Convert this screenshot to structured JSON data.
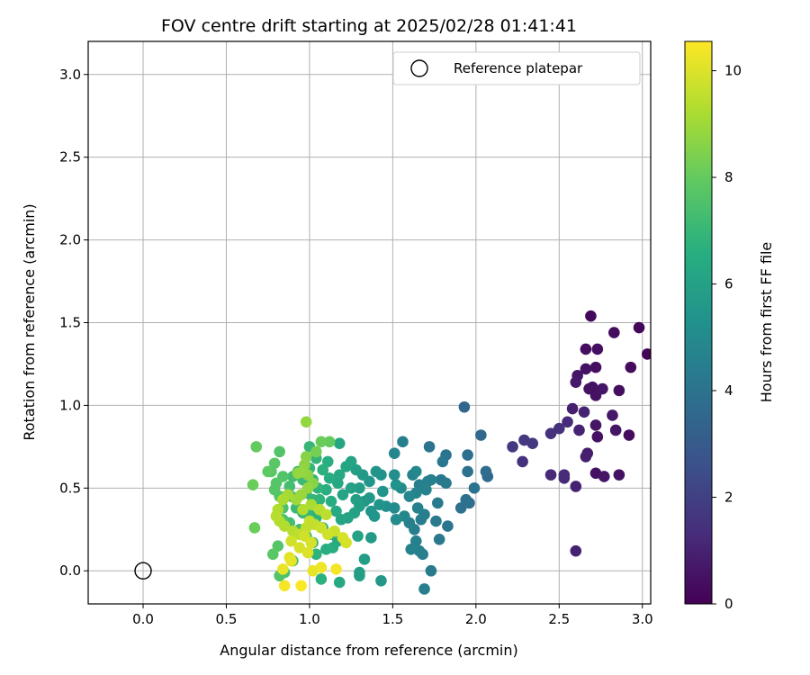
{
  "chart_data": {
    "type": "scatter",
    "title": "FOV centre drift starting at 2025/02/28 01:41:41",
    "xlabel": "Angular distance from reference (arcmin)",
    "ylabel": "Rotation from reference (arcmin)",
    "xlim": [
      -0.33,
      3.05
    ],
    "ylim": [
      -0.2,
      3.2
    ],
    "xticks": [
      "0.0",
      "0.5",
      "1.0",
      "1.5",
      "2.0",
      "2.5",
      "3.0"
    ],
    "yticks": [
      "0.0",
      "0.5",
      "1.0",
      "1.5",
      "2.0",
      "2.5",
      "3.0"
    ],
    "grid": true,
    "legend": {
      "position": "top-right",
      "label": "Reference platepar"
    },
    "reference_point": {
      "x": 0.0,
      "y": 0.0
    },
    "colorbar": {
      "label": "Hours from first FF file",
      "range": [
        0,
        10.55
      ],
      "ticks": [
        "0",
        "2",
        "4",
        "6",
        "8",
        "10"
      ],
      "colormap": "viridis"
    },
    "points": [
      [
        2.69,
        1.54,
        0.2
      ],
      [
        2.98,
        1.47,
        0.2
      ],
      [
        2.83,
        1.44,
        0.3
      ],
      [
        3.03,
        1.31,
        0.1
      ],
      [
        2.66,
        1.34,
        0.4
      ],
      [
        2.73,
        1.34,
        0.4
      ],
      [
        2.93,
        1.23,
        0.3
      ],
      [
        2.66,
        1.22,
        0.5
      ],
      [
        2.72,
        1.23,
        0.4
      ],
      [
        2.61,
        1.18,
        0.6
      ],
      [
        2.6,
        1.14,
        0.7
      ],
      [
        2.68,
        1.1,
        0.5
      ],
      [
        2.7,
        1.11,
        0.5
      ],
      [
        2.76,
        1.1,
        0.6
      ],
      [
        2.72,
        1.06,
        0.5
      ],
      [
        2.86,
        1.09,
        0.4
      ],
      [
        2.58,
        0.98,
        0.9
      ],
      [
        2.65,
        0.96,
        1.0
      ],
      [
        2.55,
        0.9,
        1.3
      ],
      [
        2.5,
        0.86,
        1.5
      ],
      [
        2.62,
        0.85,
        1.0
      ],
      [
        2.72,
        0.88,
        0.6
      ],
      [
        2.82,
        0.94,
        0.7
      ],
      [
        2.73,
        0.81,
        0.5
      ],
      [
        2.84,
        0.85,
        0.6
      ],
      [
        2.92,
        0.82,
        0.3
      ],
      [
        2.22,
        0.75,
        1.8
      ],
      [
        2.29,
        0.79,
        1.7
      ],
      [
        2.34,
        0.77,
        1.7
      ],
      [
        2.45,
        0.83,
        1.5
      ],
      [
        2.67,
        0.71,
        0.8
      ],
      [
        2.66,
        0.69,
        0.9
      ],
      [
        2.28,
        0.66,
        1.5
      ],
      [
        2.45,
        0.58,
        1.2
      ],
      [
        2.53,
        0.58,
        1.3
      ],
      [
        2.53,
        0.56,
        1.2
      ],
      [
        2.6,
        0.51,
        1.0
      ],
      [
        2.72,
        0.59,
        0.5
      ],
      [
        2.77,
        0.57,
        0.6
      ],
      [
        2.86,
        0.58,
        0.5
      ],
      [
        2.6,
        0.12,
        1.0
      ],
      [
        1.93,
        0.99,
        3.5
      ],
      [
        2.03,
        0.82,
        3.6
      ],
      [
        1.95,
        0.7,
        3.8
      ],
      [
        2.06,
        0.6,
        3.7
      ],
      [
        2.07,
        0.57,
        3.6
      ],
      [
        1.95,
        0.6,
        3.9
      ],
      [
        1.82,
        0.7,
        4.0
      ],
      [
        1.8,
        0.66,
        4.2
      ],
      [
        1.72,
        0.75,
        4.0
      ],
      [
        1.56,
        0.78,
        4.5
      ],
      [
        1.51,
        0.71,
        4.8
      ],
      [
        1.79,
        0.55,
        4.2
      ],
      [
        1.82,
        0.53,
        4.3
      ],
      [
        1.99,
        0.5,
        4.0
      ],
      [
        1.94,
        0.43,
        3.9
      ],
      [
        1.96,
        0.41,
        3.8
      ],
      [
        1.91,
        0.38,
        3.9
      ],
      [
        1.77,
        0.41,
        4.3
      ],
      [
        1.73,
        0.55,
        4.6
      ],
      [
        1.71,
        0.54,
        4.5
      ],
      [
        1.7,
        0.49,
        4.7
      ],
      [
        1.64,
        0.6,
        4.9
      ],
      [
        1.62,
        0.58,
        4.7
      ],
      [
        1.66,
        0.52,
        4.5
      ],
      [
        1.64,
        0.47,
        4.7
      ],
      [
        1.6,
        0.45,
        4.8
      ],
      [
        1.55,
        0.5,
        5.0
      ],
      [
        1.51,
        0.58,
        5.2
      ],
      [
        1.52,
        0.52,
        5.3
      ],
      [
        1.44,
        0.48,
        5.4
      ],
      [
        1.46,
        0.39,
        5.2
      ],
      [
        1.51,
        0.38,
        5.0
      ],
      [
        1.57,
        0.33,
        4.8
      ],
      [
        1.52,
        0.31,
        5.1
      ],
      [
        1.6,
        0.29,
        4.6
      ],
      [
        1.67,
        0.31,
        4.4
      ],
      [
        1.69,
        0.34,
        4.5
      ],
      [
        1.65,
        0.38,
        4.6
      ],
      [
        1.76,
        0.3,
        4.3
      ],
      [
        1.83,
        0.27,
        4.1
      ],
      [
        1.78,
        0.19,
        4.2
      ],
      [
        1.63,
        0.25,
        4.5
      ],
      [
        1.64,
        0.18,
        4.6
      ],
      [
        1.61,
        0.13,
        4.7
      ],
      [
        1.66,
        0.12,
        4.6
      ],
      [
        1.68,
        0.1,
        4.5
      ],
      [
        1.73,
        -0.0,
        4.3
      ],
      [
        1.69,
        -0.11,
        4.5
      ],
      [
        1.43,
        -0.06,
        5.6
      ],
      [
        1.3,
        -0.01,
        5.8
      ],
      [
        1.3,
        -0.03,
        5.9
      ],
      [
        1.33,
        0.07,
        5.8
      ],
      [
        1.37,
        0.2,
        5.7
      ],
      [
        1.29,
        0.21,
        6.0
      ],
      [
        1.39,
        0.33,
        5.5
      ],
      [
        1.42,
        0.4,
        5.4
      ],
      [
        1.43,
        0.58,
        5.3
      ],
      [
        1.4,
        0.6,
        5.4
      ],
      [
        1.36,
        0.54,
        5.5
      ],
      [
        1.36,
        0.44,
        5.6
      ],
      [
        1.37,
        0.36,
        5.5
      ],
      [
        1.33,
        0.42,
        5.6
      ],
      [
        1.3,
        0.5,
        5.8
      ],
      [
        1.32,
        0.58,
        5.7
      ],
      [
        1.28,
        0.61,
        5.9
      ],
      [
        1.25,
        0.66,
        6.1
      ],
      [
        1.22,
        0.63,
        6.2
      ],
      [
        1.18,
        0.58,
        6.3
      ],
      [
        1.17,
        0.53,
        6.3
      ],
      [
        1.2,
        0.46,
        6.1
      ],
      [
        1.25,
        0.5,
        6.0
      ],
      [
        1.28,
        0.43,
        5.9
      ],
      [
        1.3,
        0.39,
        5.8
      ],
      [
        1.27,
        0.35,
        6.0
      ],
      [
        1.23,
        0.32,
        6.1
      ],
      [
        1.19,
        0.31,
        6.2
      ],
      [
        1.16,
        0.36,
        6.4
      ],
      [
        1.13,
        0.42,
        6.5
      ],
      [
        1.1,
        0.49,
        6.6
      ],
      [
        1.12,
        0.56,
        6.5
      ],
      [
        1.08,
        0.61,
        6.7
      ],
      [
        1.11,
        0.66,
        6.6
      ],
      [
        1.18,
        0.77,
        6.2
      ],
      [
        1.04,
        0.68,
        6.9
      ],
      [
        1.0,
        0.75,
        7.0
      ],
      [
        1.0,
        0.62,
        6.9
      ],
      [
        1.02,
        0.55,
        6.8
      ],
      [
        1.05,
        0.5,
        6.8
      ],
      [
        1.06,
        0.43,
        6.8
      ],
      [
        1.02,
        0.43,
        6.9
      ],
      [
        0.98,
        0.47,
        7.0
      ],
      [
        0.96,
        0.55,
        7.1
      ],
      [
        0.93,
        0.6,
        7.2
      ],
      [
        0.9,
        0.57,
        7.3
      ],
      [
        0.88,
        0.51,
        7.3
      ],
      [
        0.89,
        0.45,
        7.2
      ],
      [
        0.92,
        0.38,
        7.1
      ],
      [
        0.96,
        0.35,
        7.1
      ],
      [
        1.0,
        0.34,
        6.9
      ],
      [
        1.04,
        0.32,
        6.8
      ],
      [
        1.08,
        0.26,
        6.6
      ],
      [
        1.13,
        0.22,
        6.5
      ],
      [
        1.17,
        0.18,
        6.4
      ],
      [
        1.14,
        0.14,
        6.5
      ],
      [
        1.1,
        0.13,
        6.6
      ],
      [
        1.04,
        0.1,
        6.8
      ],
      [
        1.02,
        0.17,
        7.0
      ],
      [
        0.98,
        0.21,
        7.1
      ],
      [
        0.94,
        0.25,
        7.2
      ],
      [
        0.88,
        0.29,
        7.3
      ],
      [
        0.84,
        0.31,
        7.5
      ],
      [
        0.84,
        0.38,
        7.5
      ],
      [
        0.82,
        0.45,
        7.6
      ],
      [
        0.79,
        0.49,
        7.7
      ],
      [
        0.8,
        0.53,
        7.7
      ],
      [
        0.84,
        0.57,
        7.6
      ],
      [
        0.77,
        0.6,
        7.8
      ],
      [
        0.75,
        0.6,
        7.9
      ],
      [
        0.79,
        0.65,
        7.8
      ],
      [
        0.82,
        0.72,
        7.6
      ],
      [
        0.68,
        0.75,
        8.0
      ],
      [
        0.66,
        0.52,
        8.1
      ],
      [
        0.67,
        0.26,
        8.1
      ],
      [
        0.78,
        0.1,
        7.8
      ],
      [
        0.81,
        0.15,
        7.7
      ],
      [
        0.85,
        -0.01,
        7.5
      ],
      [
        0.82,
        -0.03,
        7.6
      ],
      [
        0.9,
        0.06,
        7.4
      ],
      [
        1.07,
        -0.05,
        6.7
      ],
      [
        1.18,
        -0.07,
        6.3
      ],
      [
        1.12,
        0.78,
        8.0
      ],
      [
        1.07,
        0.78,
        8.1
      ],
      [
        1.04,
        0.72,
        8.3
      ],
      [
        0.98,
        0.69,
        8.6
      ],
      [
        0.97,
        0.64,
        8.7
      ],
      [
        0.96,
        0.6,
        8.8
      ],
      [
        0.93,
        0.59,
        8.8
      ],
      [
        0.99,
        0.58,
        8.7
      ],
      [
        1.02,
        0.53,
        8.6
      ],
      [
        0.99,
        0.5,
        8.8
      ],
      [
        0.95,
        0.46,
        8.9
      ],
      [
        0.92,
        0.43,
        9.0
      ],
      [
        0.87,
        0.46,
        9.1
      ],
      [
        0.84,
        0.43,
        9.2
      ],
      [
        0.81,
        0.37,
        9.3
      ],
      [
        0.8,
        0.33,
        9.4
      ],
      [
        0.82,
        0.3,
        9.3
      ],
      [
        0.85,
        0.27,
        9.3
      ],
      [
        0.9,
        0.24,
        9.4
      ],
      [
        0.94,
        0.22,
        9.5
      ],
      [
        0.98,
        0.26,
        9.6
      ],
      [
        1.0,
        0.3,
        9.6
      ],
      [
        1.03,
        0.28,
        9.6
      ],
      [
        1.07,
        0.26,
        9.7
      ],
      [
        1.11,
        0.22,
        9.8
      ],
      [
        1.15,
        0.24,
        9.7
      ],
      [
        1.22,
        0.17,
        9.9
      ],
      [
        1.2,
        0.2,
        9.9
      ],
      [
        1.1,
        0.34,
        9.5
      ],
      [
        1.06,
        0.37,
        9.4
      ],
      [
        1.01,
        0.4,
        9.2
      ],
      [
        0.96,
        0.37,
        9.3
      ],
      [
        0.89,
        0.18,
        9.8
      ],
      [
        0.94,
        0.14,
        9.9
      ],
      [
        0.99,
        0.11,
        10.0
      ],
      [
        1.01,
        0.17,
        9.9
      ],
      [
        0.97,
        0.21,
        9.8
      ],
      [
        0.88,
        0.08,
        10.1
      ],
      [
        0.89,
        0.06,
        10.2
      ],
      [
        0.84,
        0.01,
        10.2
      ],
      [
        0.98,
        0.9,
        8.8
      ],
      [
        1.02,
        0.0,
        10.2
      ],
      [
        1.07,
        0.02,
        10.3
      ],
      [
        1.16,
        0.01,
        10.4
      ],
      [
        0.85,
        -0.09,
        10.4
      ],
      [
        0.95,
        -0.09,
        10.5
      ]
    ]
  }
}
